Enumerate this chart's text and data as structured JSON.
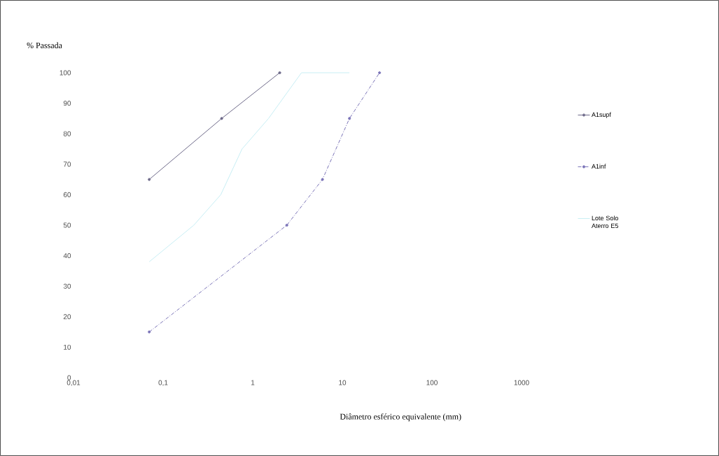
{
  "chart_data": {
    "type": "line",
    "xlabel": "Diâmetro esférico equivalente (mm)",
    "ylabel": "% Passada",
    "log": "x",
    "xlim": [
      0.01,
      1000
    ],
    "ylim": [
      0,
      100
    ],
    "xticks": [
      {
        "value": 0.01,
        "label": "0,01"
      },
      {
        "value": 0.1,
        "label": "0,1"
      },
      1,
      10,
      100,
      1000
    ],
    "yticks": [
      0,
      10,
      20,
      30,
      40,
      50,
      60,
      70,
      80,
      90,
      100
    ],
    "grid": false,
    "legend": "right",
    "series": [
      {
        "name": "A1supf",
        "color": "#6e6a8a",
        "marker": "circle",
        "line_style": "solid",
        "x": [
          0.07,
          0.45,
          2
        ],
        "values": [
          65,
          85,
          100
        ]
      },
      {
        "name": "A1inf",
        "color": "#7b74b8",
        "marker": "circle",
        "line_style": "dashed",
        "x": [
          0.07,
          2.4,
          6,
          12,
          26
        ],
        "values": [
          15,
          50,
          65,
          85,
          100
        ]
      },
      {
        "name": "Lote Solo Aterro E5",
        "color": "#c8eef4",
        "marker": "none",
        "line_style": "solid",
        "x": [
          0.07,
          0.22,
          0.44,
          0.76,
          1.5,
          3.5,
          12
        ],
        "values": [
          38,
          50,
          60,
          75,
          85,
          100,
          100
        ]
      }
    ]
  }
}
